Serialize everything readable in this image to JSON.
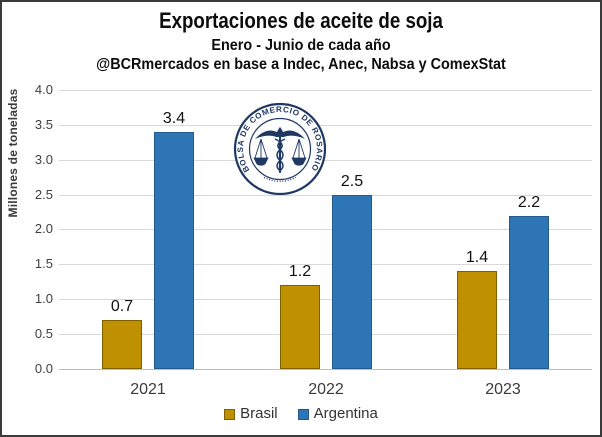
{
  "header": {
    "title": "Exportaciones de aceite de soja",
    "subtitle": "Enero - Junio de cada año",
    "source": "@BCRmercados en base a Indec, Anec, Nabsa y ComexStat"
  },
  "chart_data": {
    "type": "bar",
    "categories": [
      "2021",
      "2022",
      "2023"
    ],
    "series": [
      {
        "name": "Brasil",
        "values": [
          0.7,
          1.2,
          1.4
        ],
        "color": "#BF9000",
        "border_color": "#7F6000"
      },
      {
        "name": "Argentina",
        "values": [
          3.4,
          2.5,
          2.2
        ],
        "color": "#2E75B6",
        "border_color": "#24598C"
      }
    ],
    "ylabel": "Millones de toneladas",
    "ylim": [
      0,
      4
    ],
    "ytick_labels": [
      "0.0",
      "0.5",
      "1.0",
      "1.5",
      "2.0",
      "2.5",
      "3.0",
      "3.5",
      "4.0"
    ],
    "grid": true,
    "gridline_color": "#D9D9D9",
    "axisline_color": "#BFBFBF",
    "legend_position": "bottom",
    "value_labels": true
  },
  "watermark": {
    "ring_text": "BOLSA DE COMERCIO DE ROSARIO",
    "color": "#1F3864"
  }
}
